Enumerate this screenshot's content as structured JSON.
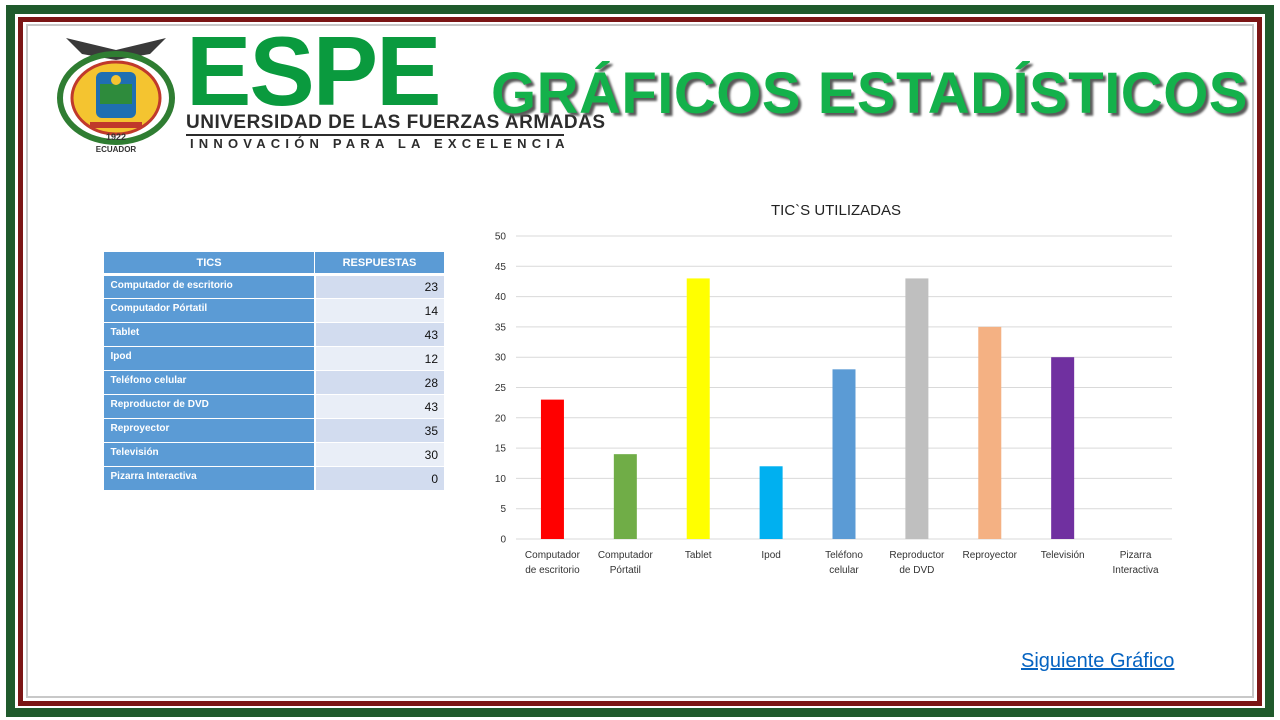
{
  "logo": {
    "word": "ESPE",
    "university": "UNIVERSIDAD DE LAS FUERZAS ARMADAS",
    "motto": "INNOVACIÓN PARA LA EXCELENCIA",
    "seal_year": "1922",
    "seal_country": "ECUADOR"
  },
  "title": "GRÁFICOS ESTADÍSTICOS",
  "table": {
    "headers": [
      "TICS",
      "RESPUESTAS"
    ],
    "rows": [
      {
        "name": "Computador  de escritorio",
        "value": "23"
      },
      {
        "name": "Computador  Pórtatil",
        "value": "14"
      },
      {
        "name": "Tablet",
        "value": "43"
      },
      {
        "name": "Ipod",
        "value": "12"
      },
      {
        "name": "Teléfono celular",
        "value": "28"
      },
      {
        "name": "Reproductor  de DVD",
        "value": "43"
      },
      {
        "name": "Reproyector",
        "value": "35"
      },
      {
        "name": "Televisión",
        "value": "30"
      },
      {
        "name": " Pizarra Interactiva",
        "value": "0"
      }
    ]
  },
  "chart_data": {
    "type": "bar",
    "title": "TIC`S UTILIZADAS",
    "categories": [
      [
        "Computador",
        "de escritorio"
      ],
      [
        "Computador",
        "Pórtatil"
      ],
      [
        "Tablet"
      ],
      [
        "Ipod"
      ],
      [
        "Teléfono",
        "celular"
      ],
      [
        "Reproductor",
        "de DVD"
      ],
      [
        "Reproyector"
      ],
      [
        "Televisión"
      ],
      [
        "Pizarra",
        "Interactiva"
      ]
    ],
    "values": [
      23,
      14,
      43,
      12,
      28,
      43,
      35,
      30,
      0
    ],
    "colors": [
      "#ff0000",
      "#70ad47",
      "#ffff00",
      "#00b0f0",
      "#5b9bd5",
      "#bfbfbf",
      "#f4b183",
      "#7030a0",
      "#4472c4"
    ],
    "ylim": [
      0,
      50
    ],
    "yticks": [
      0,
      5,
      10,
      15,
      20,
      25,
      30,
      35,
      40,
      45,
      50
    ],
    "grid": true,
    "legend": "none",
    "xlabel": "",
    "ylabel": ""
  },
  "navigation": {
    "next_label": "Siguiente Gráfico"
  }
}
